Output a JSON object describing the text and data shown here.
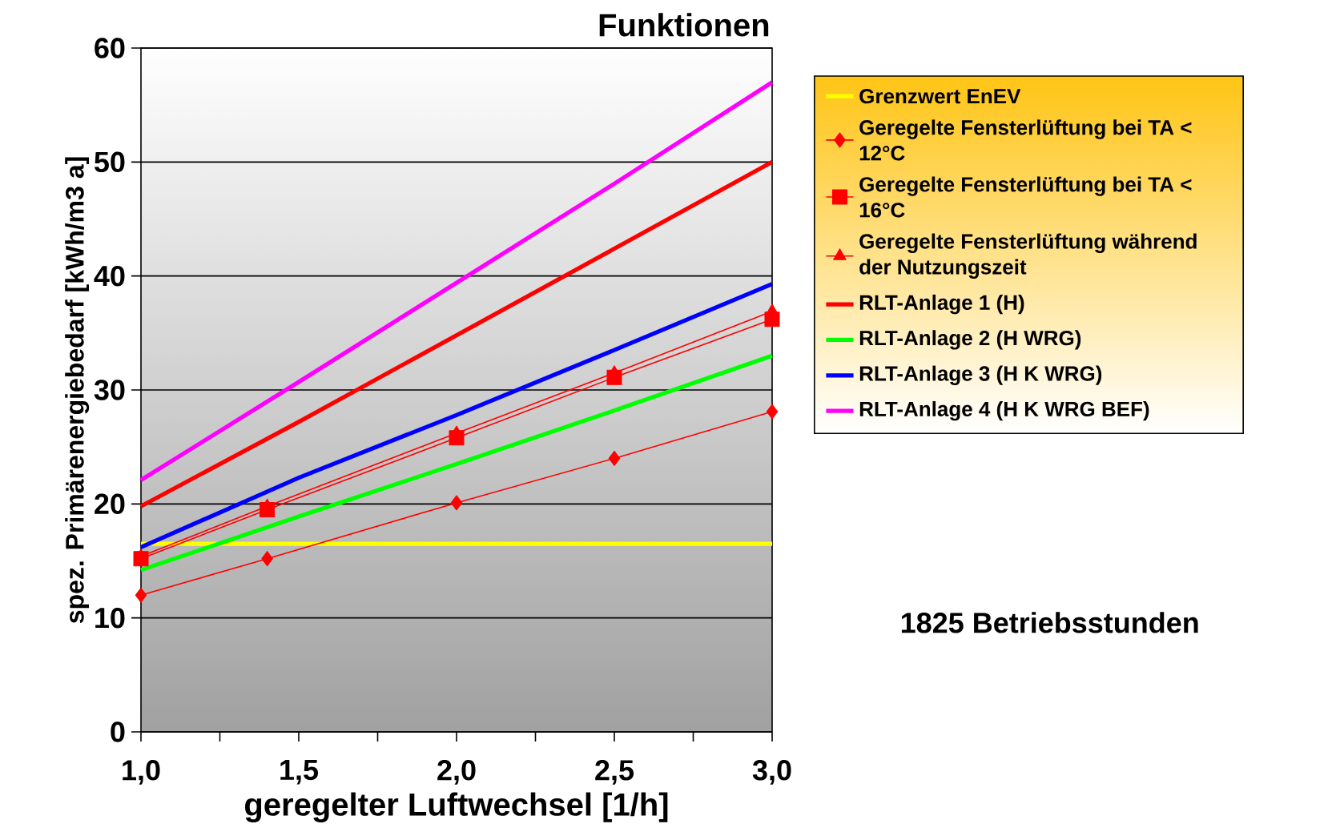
{
  "chart_data": {
    "type": "line",
    "title": "Funktionen",
    "xlabel": "geregelter Luftwechsel [1/h]",
    "ylabel": "spez. Primärenergiebedarf [kWh/m3 a]",
    "xlim": [
      1.0,
      3.0
    ],
    "ylim": [
      0,
      60
    ],
    "xticks": [
      {
        "value": 1.0,
        "label": "1,0"
      },
      {
        "value": 1.25,
        "label": null
      },
      {
        "value": 1.5,
        "label": "1,5"
      },
      {
        "value": 1.75,
        "label": null
      },
      {
        "value": 2.0,
        "label": "2,0"
      },
      {
        "value": 2.25,
        "label": null
      },
      {
        "value": 2.5,
        "label": "2,5"
      },
      {
        "value": 2.75,
        "label": null
      },
      {
        "value": 3.0,
        "label": "3,0"
      }
    ],
    "yticks": [
      0,
      10,
      20,
      30,
      40,
      50,
      60
    ],
    "grid": "y",
    "legend": "right",
    "series": [
      {
        "name": "Grenzwert EnEV",
        "color": "#ffff00",
        "marker": "none",
        "x": [
          1.0,
          3.0
        ],
        "values": [
          16.5,
          16.5
        ]
      },
      {
        "name": "Geregelte Fensterlüftung bei TA < 12°C",
        "color": "#ff0000",
        "marker": "diamond",
        "x": [
          1.0,
          1.4,
          2.0,
          2.5,
          3.0
        ],
        "values": [
          12.0,
          15.2,
          20.1,
          24.0,
          28.1
        ]
      },
      {
        "name": "Geregelte Fensterlüftung bei TA < 16°C",
        "color": "#ff0000",
        "marker": "square",
        "x": [
          1.0,
          1.4,
          2.0,
          2.5,
          3.0
        ],
        "values": [
          15.2,
          19.5,
          25.8,
          31.1,
          36.2
        ]
      },
      {
        "name": "Geregelte Fensterlüftung während der Nutzungszeit",
        "color": "#ff0000",
        "marker": "triangle",
        "x": [
          1.0,
          1.4,
          2.0,
          2.5,
          3.0
        ],
        "values": [
          15.4,
          19.8,
          26.2,
          31.5,
          36.9
        ]
      },
      {
        "name": "RLT-Anlage 1 (H)",
        "color": "#ff0000",
        "marker": "none",
        "x": [
          1.0,
          1.5,
          2.0,
          2.5,
          3.0
        ],
        "values": [
          19.8,
          27.2,
          34.8,
          42.4,
          50.0
        ]
      },
      {
        "name": "RLT-Anlage 2 (H WRG)",
        "color": "#00ff00",
        "marker": "none",
        "x": [
          1.0,
          1.5,
          2.0,
          2.5,
          3.0
        ],
        "values": [
          14.2,
          18.9,
          23.5,
          28.2,
          33.0
        ]
      },
      {
        "name": "RLT-Anlage 3 (H K WRG)",
        "color": "#0000ff",
        "marker": "none",
        "x": [
          1.0,
          1.5,
          2.0,
          2.5,
          3.0
        ],
        "values": [
          16.2,
          22.3,
          27.8,
          33.5,
          39.3
        ]
      },
      {
        "name": "RLT-Anlage 4 (H K WRG BEF)",
        "color": "#ff00ff",
        "marker": "none",
        "x": [
          1.0,
          1.5,
          2.0,
          2.5,
          3.0
        ],
        "values": [
          22.1,
          30.7,
          39.4,
          48.1,
          57.0
        ]
      }
    ],
    "annotations": [
      "1825 Betriebsstunden"
    ]
  }
}
